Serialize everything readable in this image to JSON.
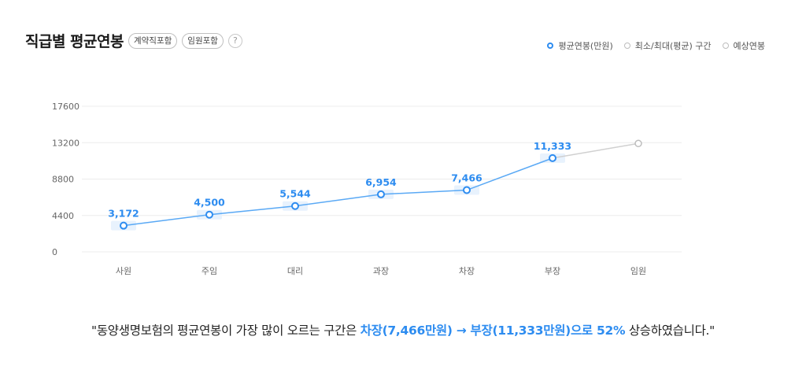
{
  "header": {
    "title": "직급별 평균연봉",
    "pill_contract": "계약직포함",
    "pill_exec": "임원포함",
    "help_glyph": "?"
  },
  "legend": {
    "avg": "평균연봉(만원)",
    "range": "최소/최대(평균) 구간",
    "expected": "예상연봉"
  },
  "colors": {
    "accent": "#2d8cf0",
    "line": "#5aa9f5",
    "expected_line": "#d0d0d0",
    "grid": "#ececec",
    "band": "#e8f2fd"
  },
  "chart_data": {
    "type": "line",
    "categories": [
      "사원",
      "주임",
      "대리",
      "과장",
      "차장",
      "부장",
      "임원"
    ],
    "series": [
      {
        "name": "평균연봉(만원)",
        "values": [
          3172,
          4500,
          5544,
          6954,
          7466,
          11333,
          null
        ],
        "labels": [
          "3,172",
          "4,500",
          "5,544",
          "6,954",
          "7,466",
          "11,333",
          ""
        ]
      },
      {
        "name": "예상연봉",
        "values": [
          null,
          null,
          null,
          null,
          null,
          11333,
          13100
        ]
      }
    ],
    "yticks": [
      0,
      4400,
      8800,
      13200,
      17600
    ],
    "ylim": [
      0,
      17600
    ],
    "grid": true,
    "legend_position": "top-right"
  },
  "summary": {
    "prefix": "\"동양생명보험의 평균연봉이 가장 많이 오르는 구간은 ",
    "highlight": "차장(7,466만원) → 부장(11,333만원)으로 52%",
    "suffix": " 상승하였습니다.\""
  }
}
